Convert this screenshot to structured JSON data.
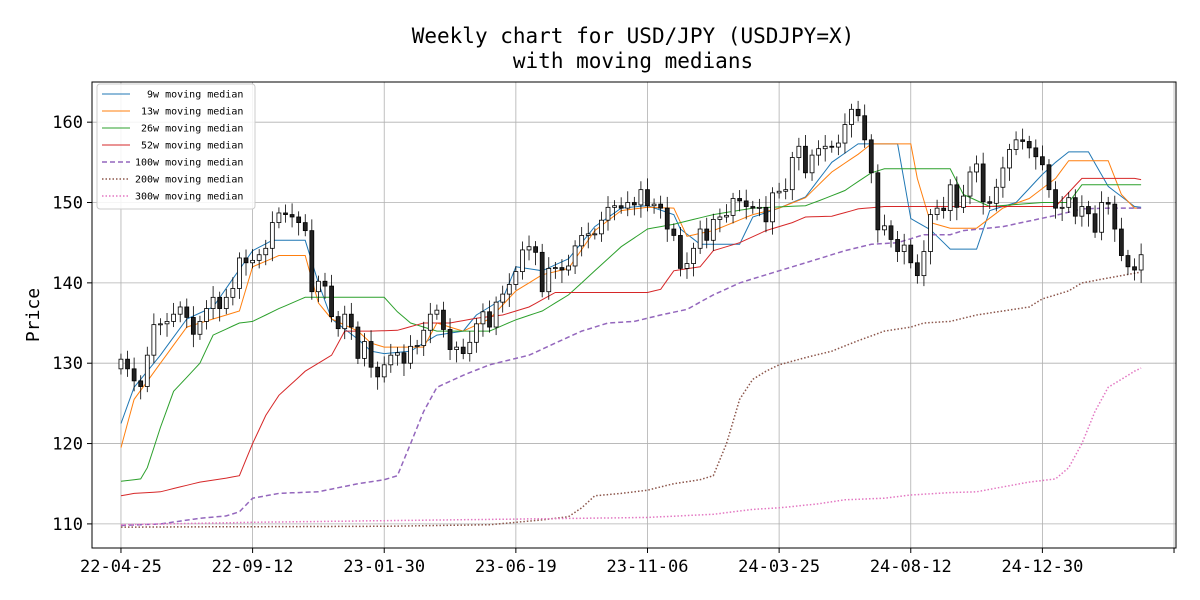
{
  "chart_data": {
    "type": "candlestick",
    "title": "Weekly chart for USD/JPY (USDJPY=X)",
    "subtitle": "with moving medians",
    "xlabel": "",
    "ylabel": "Price",
    "ylim": [
      107,
      165
    ],
    "yticks": [
      110,
      120,
      130,
      140,
      150,
      160
    ],
    "x_start_date": "2022-04-25",
    "x_end_date": "2025-04-21",
    "x_range_weeks": [
      -4.4,
      160.3
    ],
    "xticks": [
      {
        "label": "22-04-25",
        "week": 0
      },
      {
        "label": "22-09-12",
        "week": 20
      },
      {
        "label": "23-01-30",
        "week": 40
      },
      {
        "label": "23-06-19",
        "week": 60
      },
      {
        "label": "23-11-06",
        "week": 80
      },
      {
        "label": "24-03-25",
        "week": 100
      },
      {
        "label": "24-08-12",
        "week": 120
      },
      {
        "label": "24-12-30",
        "week": 140
      },
      {
        "label": "",
        "week": 160
      }
    ],
    "grid": true,
    "legend_position": "top-left",
    "close": [
      130.5,
      129.3,
      127.8,
      127.1,
      131.0,
      134.8,
      134.9,
      135.2,
      136.1,
      137.0,
      135.7,
      133.6,
      135.2,
      136.8,
      138.2,
      136.8,
      138.2,
      139.3,
      143.1,
      142.5,
      142.8,
      143.5,
      144.3,
      147.5,
      148.7,
      148.5,
      148.2,
      147.5,
      146.5,
      138.9,
      140.2,
      139.6,
      135.8,
      134.3,
      136.1,
      134.5,
      130.6,
      132.7,
      129.5,
      128.3,
      129.8,
      131.0,
      131.3,
      130.0,
      132.1,
      132.2,
      134.1,
      136.1,
      136.6,
      134.2,
      131.7,
      132.0,
      131.2,
      132.6,
      134.9,
      136.4,
      134.5,
      137.6,
      138.6,
      139.8,
      141.4,
      144.1,
      144.5,
      143.8,
      138.9,
      141.8,
      141.9,
      141.6,
      142.1,
      144.6,
      145.9,
      146.1,
      146.1,
      147.8,
      149.4,
      149.6,
      149.3,
      150.0,
      149.7,
      151.6,
      149.6,
      149.8,
      149.3,
      146.7,
      145.9,
      141.8,
      142.4,
      144.3,
      146.7,
      145.3,
      147.9,
      148.2,
      148.4,
      150.5,
      150.2,
      149.5,
      149.3,
      149.4,
      147.6,
      151.2,
      151.4,
      151.6,
      155.6,
      157.0,
      153.7,
      155.9,
      156.7,
      157.0,
      156.9,
      157.4,
      159.7,
      161.6,
      160.8,
      157.8,
      153.7,
      146.6,
      147.1,
      145.4,
      143.9,
      144.7,
      142.5,
      140.9,
      143.9,
      148.5,
      149.3,
      149.0,
      152.2,
      149.4,
      150.8,
      153.8,
      154.8,
      150.1,
      149.9,
      151.9,
      154.3,
      156.6,
      157.8,
      157.6,
      156.8,
      155.7,
      154.7,
      151.6,
      149.3,
      149.4,
      150.6,
      148.3,
      149.5,
      148.6,
      146.3,
      150.0,
      149.8,
      146.7,
      143.4,
      142.0,
      141.6,
      143.5
    ],
    "series": [
      {
        "name": "  9w moving median",
        "color": "#1f77b4",
        "dash": "solid",
        "anchors": [
          [
            0,
            122.5
          ],
          [
            2,
            127
          ],
          [
            6,
            131
          ],
          [
            10,
            135.5
          ],
          [
            14,
            137
          ],
          [
            20,
            144
          ],
          [
            23,
            145.3
          ],
          [
            28,
            145.3
          ],
          [
            30,
            140
          ],
          [
            32,
            135.5
          ],
          [
            36,
            133
          ],
          [
            38,
            131.5
          ],
          [
            40,
            131.2
          ],
          [
            44,
            131.5
          ],
          [
            48,
            133.5
          ],
          [
            52,
            134
          ],
          [
            54,
            136
          ],
          [
            58,
            138
          ],
          [
            60,
            142
          ],
          [
            64,
            141.5
          ],
          [
            68,
            143
          ],
          [
            72,
            147
          ],
          [
            76,
            149.3
          ],
          [
            80,
            149.6
          ],
          [
            84,
            148.5
          ],
          [
            85,
            146.7
          ],
          [
            88,
            144.8
          ],
          [
            94,
            144.8
          ],
          [
            96,
            148.2
          ],
          [
            100,
            149.3
          ],
          [
            104,
            150.7
          ],
          [
            108,
            155
          ],
          [
            112,
            157.3
          ],
          [
            118,
            157.3
          ],
          [
            120,
            148
          ],
          [
            123,
            146.6
          ],
          [
            126,
            144.2
          ],
          [
            130,
            144.2
          ],
          [
            132,
            149
          ],
          [
            136,
            150
          ],
          [
            140,
            153.5
          ],
          [
            142,
            155
          ],
          [
            144,
            156.3
          ],
          [
            147,
            156.3
          ],
          [
            150,
            152
          ],
          [
            154,
            149.5
          ],
          [
            156,
            149.3
          ],
          [
            158,
            148
          ]
        ]
      },
      {
        "name": " 13w moving median",
        "color": "#ff7f0e",
        "dash": "solid",
        "anchors": [
          [
            0,
            119.5
          ],
          [
            2,
            125.5
          ],
          [
            6,
            130
          ],
          [
            10,
            134.5
          ],
          [
            14,
            135.5
          ],
          [
            18,
            136.5
          ],
          [
            20,
            142
          ],
          [
            24,
            143.4
          ],
          [
            28,
            143.4
          ],
          [
            30,
            137.5
          ],
          [
            32,
            135.5
          ],
          [
            36,
            134
          ],
          [
            38,
            132.5
          ],
          [
            40,
            132
          ],
          [
            46,
            132
          ],
          [
            48,
            135
          ],
          [
            52,
            134
          ],
          [
            56,
            135.5
          ],
          [
            60,
            139
          ],
          [
            64,
            141
          ],
          [
            68,
            141.8
          ],
          [
            72,
            146.5
          ],
          [
            76,
            149
          ],
          [
            80,
            149.4
          ],
          [
            84,
            149.3
          ],
          [
            86,
            145.8
          ],
          [
            90,
            146.5
          ],
          [
            96,
            148.5
          ],
          [
            100,
            149.3
          ],
          [
            104,
            150.6
          ],
          [
            108,
            153.8
          ],
          [
            112,
            156
          ],
          [
            114,
            157.3
          ],
          [
            120,
            157.3
          ],
          [
            121,
            153
          ],
          [
            123,
            147.5
          ],
          [
            126,
            146.8
          ],
          [
            130,
            146.8
          ],
          [
            134,
            149.3
          ],
          [
            138,
            150.5
          ],
          [
            142,
            153
          ],
          [
            144,
            155.2
          ],
          [
            150,
            155.2
          ],
          [
            152,
            151
          ],
          [
            154,
            149.3
          ],
          [
            158,
            149.3
          ]
        ]
      },
      {
        "name": " 26w moving median",
        "color": "#2ca02c",
        "dash": "solid",
        "anchors": [
          [
            0,
            115.3
          ],
          [
            3,
            115.6
          ],
          [
            4,
            117
          ],
          [
            6,
            122
          ],
          [
            8,
            126.5
          ],
          [
            12,
            130
          ],
          [
            14,
            133.5
          ],
          [
            18,
            135
          ],
          [
            20,
            135.2
          ],
          [
            24,
            136.8
          ],
          [
            28,
            138.2
          ],
          [
            40,
            138.2
          ],
          [
            42,
            136.4
          ],
          [
            44,
            135
          ],
          [
            48,
            134
          ],
          [
            52,
            134
          ],
          [
            56,
            134
          ],
          [
            60,
            135.4
          ],
          [
            64,
            136.5
          ],
          [
            68,
            138.5
          ],
          [
            72,
            141.5
          ],
          [
            76,
            144.5
          ],
          [
            80,
            146.7
          ],
          [
            84,
            147.3
          ],
          [
            90,
            148.5
          ],
          [
            96,
            149.3
          ],
          [
            104,
            149.6
          ],
          [
            106,
            150.2
          ],
          [
            110,
            151.5
          ],
          [
            114,
            153.7
          ],
          [
            116,
            154.2
          ],
          [
            126,
            154.2
          ],
          [
            128,
            151
          ],
          [
            132,
            149.5
          ],
          [
            140,
            150
          ],
          [
            144,
            150
          ],
          [
            146,
            152.2
          ],
          [
            158,
            152.2
          ]
        ]
      },
      {
        "name": " 52w moving median",
        "color": "#d62728",
        "dash": "solid",
        "anchors": [
          [
            0,
            113.5
          ],
          [
            2,
            113.8
          ],
          [
            6,
            114
          ],
          [
            8,
            114.4
          ],
          [
            12,
            115.2
          ],
          [
            16,
            115.7
          ],
          [
            18,
            116
          ],
          [
            20,
            120
          ],
          [
            22,
            123.5
          ],
          [
            24,
            126
          ],
          [
            28,
            129
          ],
          [
            32,
            131
          ],
          [
            34,
            134
          ],
          [
            38,
            134
          ],
          [
            42,
            134.1
          ],
          [
            46,
            135
          ],
          [
            50,
            135
          ],
          [
            54,
            135.6
          ],
          [
            58,
            136
          ],
          [
            62,
            137
          ],
          [
            66,
            138.8
          ],
          [
            80,
            138.8
          ],
          [
            82,
            139.2
          ],
          [
            84,
            141.5
          ],
          [
            88,
            142
          ],
          [
            90,
            144
          ],
          [
            94,
            145
          ],
          [
            98,
            146.5
          ],
          [
            102,
            147.5
          ],
          [
            104,
            148.2
          ],
          [
            108,
            148.3
          ],
          [
            112,
            149.2
          ],
          [
            116,
            149.5
          ],
          [
            142,
            149.5
          ],
          [
            146,
            153
          ],
          [
            150,
            153
          ],
          [
            154,
            153
          ],
          [
            158,
            152.4
          ]
        ]
      },
      {
        "name": "100w moving median",
        "color": "#9467bd",
        "dash": "dashed",
        "anchors": [
          [
            0,
            109.8
          ],
          [
            6,
            110
          ],
          [
            12,
            110.7
          ],
          [
            16,
            111
          ],
          [
            18,
            111.5
          ],
          [
            20,
            113.2
          ],
          [
            24,
            113.8
          ],
          [
            30,
            114
          ],
          [
            36,
            115
          ],
          [
            40,
            115.5
          ],
          [
            42,
            116
          ],
          [
            44,
            120
          ],
          [
            46,
            124
          ],
          [
            48,
            127
          ],
          [
            52,
            128.5
          ],
          [
            56,
            129.8
          ],
          [
            62,
            131
          ],
          [
            66,
            132.5
          ],
          [
            70,
            134
          ],
          [
            74,
            135
          ],
          [
            78,
            135.2
          ],
          [
            82,
            136
          ],
          [
            86,
            136.7
          ],
          [
            90,
            138.5
          ],
          [
            94,
            140
          ],
          [
            98,
            141
          ],
          [
            102,
            142
          ],
          [
            106,
            143
          ],
          [
            110,
            144
          ],
          [
            114,
            144.8
          ],
          [
            118,
            145
          ],
          [
            122,
            146
          ],
          [
            126,
            146
          ],
          [
            128,
            146.5
          ],
          [
            134,
            147
          ],
          [
            138,
            147.7
          ],
          [
            142,
            148.4
          ],
          [
            146,
            149.2
          ],
          [
            150,
            149.3
          ],
          [
            158,
            149.3
          ]
        ]
      },
      {
        "name": "200w moving median",
        "color": "#8c564b",
        "dash": "dotted",
        "anchors": [
          [
            0,
            109.6
          ],
          [
            40,
            109.7
          ],
          [
            56,
            109.9
          ],
          [
            64,
            110.5
          ],
          [
            68,
            110.9
          ],
          [
            70,
            112
          ],
          [
            72,
            113.5
          ],
          [
            76,
            113.8
          ],
          [
            80,
            114.2
          ],
          [
            84,
            115
          ],
          [
            88,
            115.5
          ],
          [
            90,
            116
          ],
          [
            92,
            120
          ],
          [
            94,
            125.5
          ],
          [
            96,
            128
          ],
          [
            98,
            129
          ],
          [
            100,
            129.8
          ],
          [
            104,
            130.7
          ],
          [
            108,
            131.5
          ],
          [
            112,
            132.8
          ],
          [
            116,
            134
          ],
          [
            120,
            134.5
          ],
          [
            122,
            135
          ],
          [
            126,
            135.2
          ],
          [
            130,
            136
          ],
          [
            134,
            136.5
          ],
          [
            138,
            137
          ],
          [
            140,
            138
          ],
          [
            144,
            139
          ],
          [
            146,
            140
          ],
          [
            150,
            140.6
          ],
          [
            154,
            141.2
          ],
          [
            158,
            141.8
          ]
        ]
      },
      {
        "name": "300w moving median",
        "color": "#e377c2",
        "dash": "dotted",
        "anchors": [
          [
            0,
            109.9
          ],
          [
            20,
            110.2
          ],
          [
            40,
            110.4
          ],
          [
            60,
            110.6
          ],
          [
            80,
            110.8
          ],
          [
            90,
            111.2
          ],
          [
            96,
            111.8
          ],
          [
            100,
            112
          ],
          [
            106,
            112.5
          ],
          [
            110,
            113
          ],
          [
            116,
            113.2
          ],
          [
            120,
            113.6
          ],
          [
            126,
            113.9
          ],
          [
            130,
            114
          ],
          [
            134,
            114.6
          ],
          [
            138,
            115.2
          ],
          [
            142,
            115.6
          ],
          [
            144,
            117
          ],
          [
            146,
            120
          ],
          [
            148,
            124
          ],
          [
            150,
            127
          ],
          [
            152,
            128
          ],
          [
            154,
            129
          ],
          [
            156,
            129.8
          ],
          [
            158,
            130.1
          ]
        ]
      }
    ]
  }
}
